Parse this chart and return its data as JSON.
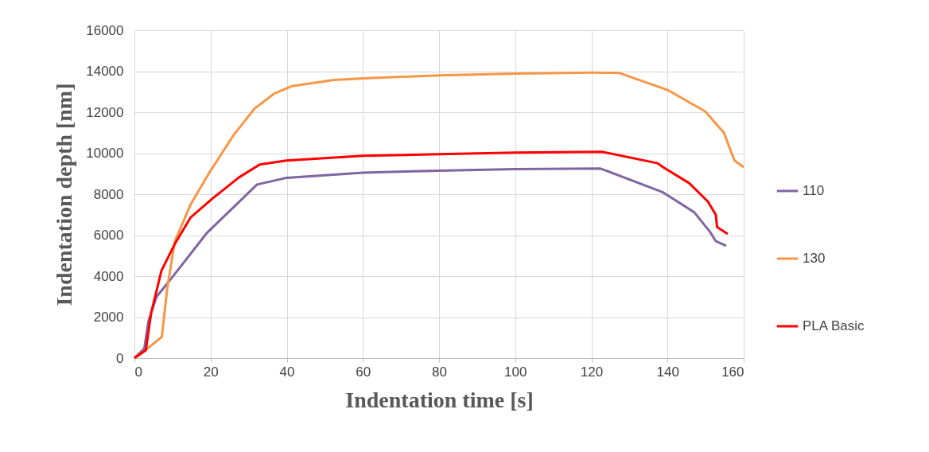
{
  "chart_data": {
    "type": "line",
    "xlabel": "Indentation time [s]",
    "ylabel": "Indentation depth [nm]",
    "xlim": [
      0,
      160
    ],
    "xticks": [
      0,
      20,
      40,
      60,
      80,
      100,
      120,
      140,
      160
    ],
    "ylim": [
      0,
      16000
    ],
    "yticks": [
      0,
      2000,
      4000,
      6000,
      8000,
      10000,
      12000,
      14000,
      16000
    ],
    "grid": true,
    "legend": "right",
    "marker": "none",
    "line_style": "solid",
    "series": [
      {
        "name": "110",
        "color": "#8064a2",
        "x": [
          0,
          2.6,
          3.7,
          5.8,
          9.2,
          19,
          32.2,
          40,
          60,
          80,
          100,
          122.4,
          138.8,
          147,
          151.2,
          152.7,
          155.4
        ],
        "values": [
          0,
          470,
          1820,
          2990,
          3770,
          6100,
          8470,
          8800,
          9050,
          9150,
          9220,
          9250,
          8090,
          7120,
          6150,
          5700,
          5480
        ]
      },
      {
        "name": "130",
        "color": "#f79646",
        "x": [
          0,
          3,
          7.2,
          8.6,
          10.6,
          14.8,
          19.7,
          26,
          31.5,
          36.8,
          41.3,
          52.4,
          60,
          80,
          100,
          120,
          127.3,
          140.2,
          149.9,
          154.8,
          156.9,
          157.6,
          160
        ],
        "values": [
          0,
          400,
          1040,
          3370,
          5700,
          7510,
          9060,
          10870,
          12170,
          12920,
          13270,
          13570,
          13650,
          13800,
          13880,
          13930,
          13920,
          13070,
          12040,
          11000,
          9970,
          9640,
          9320
        ]
      },
      {
        "name": "PLA Basic",
        "color": "#ff0000",
        "x": [
          0,
          3,
          4.4,
          7.1,
          10.6,
          14.8,
          20.4,
          27.4,
          32.9,
          39.9,
          60,
          80,
          100,
          122.8,
          137.4,
          138.8,
          145.7,
          150.6,
          152.7,
          153,
          155.8
        ],
        "values": [
          0,
          390,
          2210,
          4270,
          5570,
          6870,
          7770,
          8810,
          9450,
          9640,
          9870,
          9950,
          10030,
          10070,
          9510,
          9320,
          8540,
          7640,
          6990,
          6400,
          6060
        ]
      }
    ]
  }
}
